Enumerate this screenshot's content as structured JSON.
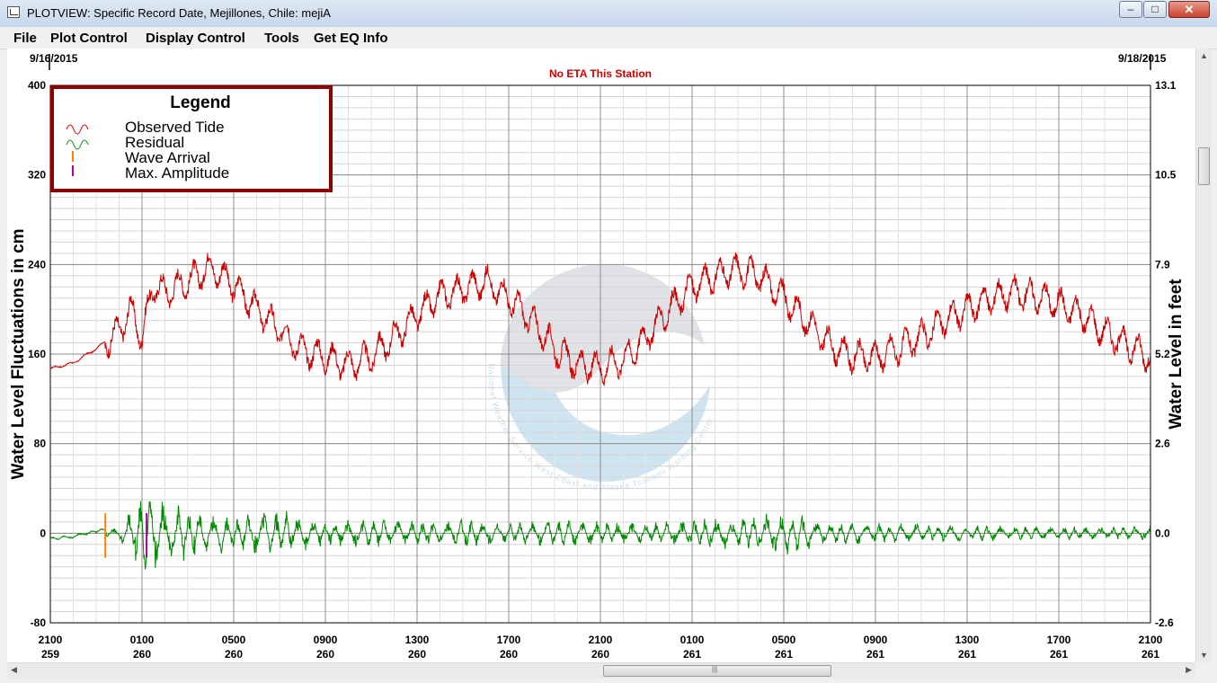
{
  "window": {
    "title": "PLOTVIEW: Specific Record Date, Mejillones, Chile: mejiA",
    "min_glyph": "–",
    "max_glyph": "□",
    "close_glyph": "✕"
  },
  "menu": [
    "File",
    "Plot Control",
    "Display Control",
    "Tools",
    "Get EQ Info"
  ],
  "plot": {
    "date_left": "9/16/2015",
    "date_right": "9/18/2015",
    "notice": "No ETA This Station",
    "ylabel_left": "Water Level Fluctuations in cm",
    "ylabel_right": "Water Level in feet",
    "legend": {
      "title": "Legend",
      "items": [
        "Observed Tide",
        "Residual",
        "Wave Arrival",
        "Max. Amplitude"
      ]
    },
    "watermark_text": "National Weather Service  West Coast and Alaska Tsunami Warning Center",
    "colors": {
      "observed": "#cc0000",
      "residual": "#008800",
      "wave_arrival": "#ff8000",
      "max_amplitude": "#aa00aa",
      "legend_border": "#8b0000"
    }
  },
  "chart_data": {
    "type": "line",
    "x_ticks": [
      {
        "time": "2100",
        "day": "259"
      },
      {
        "time": "0100",
        "day": "260"
      },
      {
        "time": "0500",
        "day": "260"
      },
      {
        "time": "0900",
        "day": "260"
      },
      {
        "time": "1300",
        "day": "260"
      },
      {
        "time": "1700",
        "day": "260"
      },
      {
        "time": "2100",
        "day": "260"
      },
      {
        "time": "0100",
        "day": "261"
      },
      {
        "time": "0500",
        "day": "261"
      },
      {
        "time": "0900",
        "day": "261"
      },
      {
        "time": "1300",
        "day": "261"
      },
      {
        "time": "1700",
        "day": "261"
      },
      {
        "time": "2100",
        "day": "261"
      }
    ],
    "y_left": {
      "ylim": [
        -80,
        400
      ],
      "ticks": [
        400,
        320,
        240,
        160,
        80,
        0,
        -80
      ]
    },
    "y_right": {
      "ticks": [
        "13.1",
        "10.5",
        "7.9",
        "5.2",
        "2.6",
        "0.0",
        "-2.6"
      ]
    },
    "x_range_hours": [
      0,
      48
    ],
    "wave_arrival_hour": 2.4,
    "max_amplitude_hour": 4.2,
    "series": [
      {
        "name": "Observed Tide",
        "color": "#cc0000",
        "x": [
          0,
          1,
          2,
          3,
          3.5,
          4,
          4.5,
          5,
          6,
          7,
          8,
          9,
          10,
          11,
          12,
          13,
          14,
          15,
          16,
          17,
          18,
          19,
          20,
          21,
          22,
          23,
          24,
          25,
          26,
          27,
          28,
          29,
          30,
          31,
          32,
          33,
          34,
          35,
          36,
          37,
          38,
          39,
          40,
          41,
          42,
          43,
          44,
          45,
          46,
          47,
          48
        ],
        "y": [
          147,
          152,
          165,
          180,
          200,
          175,
          222,
          215,
          225,
          238,
          222,
          200,
          182,
          163,
          158,
          150,
          158,
          175,
          195,
          212,
          218,
          225,
          210,
          190,
          165,
          150,
          148,
          155,
          175,
          200,
          220,
          230,
          235,
          230,
          210,
          190,
          168,
          158,
          158,
          165,
          175,
          190,
          200,
          210,
          215,
          212,
          205,
          195,
          180,
          168,
          158
        ]
      },
      {
        "name": "Residual",
        "color": "#008800",
        "x": [
          0,
          1,
          2,
          3,
          4,
          5,
          6,
          7,
          8,
          10,
          12,
          14,
          16,
          18,
          20,
          22,
          24,
          26,
          28,
          30,
          32,
          34,
          36,
          38,
          40,
          42,
          44,
          46,
          48
        ],
        "y": [
          -5,
          -3,
          2,
          5,
          35,
          28,
          22,
          18,
          15,
          20,
          10,
          12,
          10,
          12,
          8,
          12,
          10,
          8,
          12,
          15,
          18,
          10,
          9,
          8,
          7,
          6,
          6,
          5,
          6
        ]
      }
    ]
  }
}
